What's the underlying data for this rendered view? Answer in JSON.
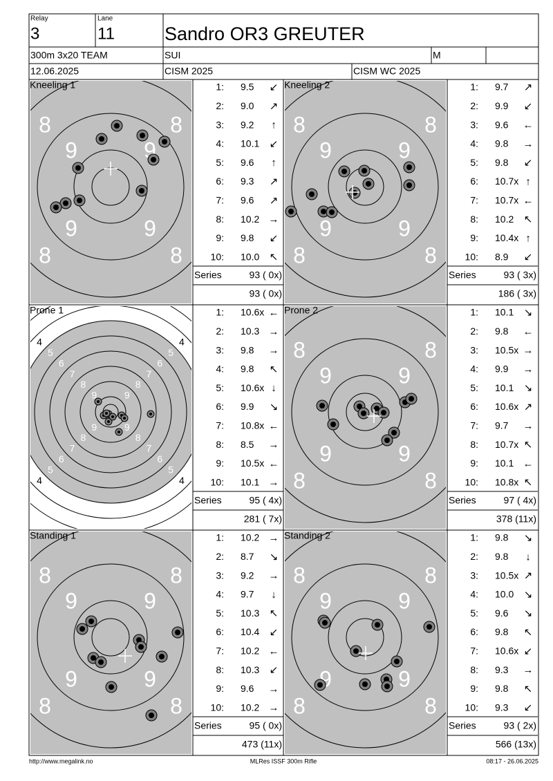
{
  "header": {
    "relay_label": "Relay",
    "relay": "3",
    "lane_label": "Lane",
    "lane": "11",
    "name": "Sandro OR3 GREUTER",
    "event": "300m 3x20 TEAM",
    "nation": "SUI",
    "gender": "M",
    "date": "12.06.2025",
    "competition": "CISM 2025",
    "match": "CISM WC 2025"
  },
  "panels": [
    {
      "title": "Kneeling 1",
      "ring_labels": [
        "8",
        "9"
      ],
      "shots": [
        [
          "1:",
          "9.5",
          "↙"
        ],
        [
          "2:",
          "9.0",
          "↗"
        ],
        [
          "3:",
          "9.2",
          "↑"
        ],
        [
          "4:",
          "10.1",
          "↙"
        ],
        [
          "5:",
          "9.6",
          "↑"
        ],
        [
          "6:",
          "9.3",
          "↗"
        ],
        [
          "7:",
          "9.6",
          "↗"
        ],
        [
          "8:",
          "10.2",
          "→"
        ],
        [
          "9:",
          "9.8",
          "↙"
        ],
        [
          "10:",
          "10.0",
          "↖"
        ]
      ],
      "series_label": "Series",
      "series": "93 ( 0x)",
      "total": "93 ( 0x)"
    },
    {
      "title": "Kneeling 2",
      "ring_labels": [
        "8",
        "9"
      ],
      "shots": [
        [
          "1:",
          "9.7",
          "↗"
        ],
        [
          "2:",
          "9.9",
          "↙"
        ],
        [
          "3:",
          "9.6",
          "←"
        ],
        [
          "4:",
          "9.8",
          "→"
        ],
        [
          "5:",
          "9.8",
          "↙"
        ],
        [
          "6:",
          "10.7x",
          "↑"
        ],
        [
          "7:",
          "10.7x",
          "←"
        ],
        [
          "8:",
          "10.2",
          "↖"
        ],
        [
          "9:",
          "10.4x",
          "↑"
        ],
        [
          "10:",
          "8.9",
          "↙"
        ]
      ],
      "series_label": "Series",
      "series": "93 ( 3x)",
      "total": "186 ( 3x)"
    },
    {
      "title": "Prone 1",
      "ring_labels": [
        "4",
        "5",
        "6",
        "7",
        "8",
        "9"
      ],
      "shots": [
        [
          "1:",
          "10.6x",
          "←"
        ],
        [
          "2:",
          "10.3",
          "→"
        ],
        [
          "3:",
          "9.8",
          "→"
        ],
        [
          "4:",
          "9.8",
          "↖"
        ],
        [
          "5:",
          "10.6x",
          "↓"
        ],
        [
          "6:",
          "9.9",
          "↘"
        ],
        [
          "7:",
          "10.8x",
          "←"
        ],
        [
          "8:",
          "8.5",
          "→"
        ],
        [
          "9:",
          "10.5x",
          "←"
        ],
        [
          "10:",
          "10.1",
          "→"
        ]
      ],
      "series_label": "Series",
      "series": "95 ( 4x)",
      "total": "281 ( 7x)"
    },
    {
      "title": "Prone 2",
      "ring_labels": [
        "8",
        "9"
      ],
      "shots": [
        [
          "1:",
          "10.1",
          "↘"
        ],
        [
          "2:",
          "9.8",
          "←"
        ],
        [
          "3:",
          "10.5x",
          "→"
        ],
        [
          "4:",
          "9.9",
          "→"
        ],
        [
          "5:",
          "10.1",
          "↘"
        ],
        [
          "6:",
          "10.6x",
          "↗"
        ],
        [
          "7:",
          "9.7",
          "→"
        ],
        [
          "8:",
          "10.7x",
          "↖"
        ],
        [
          "9:",
          "10.1",
          "←"
        ],
        [
          "10:",
          "10.8x",
          "↖"
        ]
      ],
      "series_label": "Series",
      "series": "97 ( 4x)",
      "total": "378 (11x)"
    },
    {
      "title": "Standing 1",
      "ring_labels": [
        "8",
        "9"
      ],
      "shots": [
        [
          "1:",
          "10.2",
          "→"
        ],
        [
          "2:",
          "8.7",
          "↘"
        ],
        [
          "3:",
          "9.2",
          "→"
        ],
        [
          "4:",
          "9.7",
          "↓"
        ],
        [
          "5:",
          "10.3",
          "↖"
        ],
        [
          "6:",
          "10.4",
          "↙"
        ],
        [
          "7:",
          "10.2",
          "←"
        ],
        [
          "8:",
          "10.3",
          "↙"
        ],
        [
          "9:",
          "9.6",
          "→"
        ],
        [
          "10:",
          "10.2",
          "→"
        ]
      ],
      "series_label": "Series",
      "series": "95 ( 0x)",
      "total": "473 (11x)"
    },
    {
      "title": "Standing 2",
      "ring_labels": [
        "8",
        "9"
      ],
      "shots": [
        [
          "1:",
          "9.8",
          "↘"
        ],
        [
          "2:",
          "9.8",
          "↓"
        ],
        [
          "3:",
          "10.5x",
          "↗"
        ],
        [
          "4:",
          "10.0",
          "↘"
        ],
        [
          "5:",
          "9.6",
          "↘"
        ],
        [
          "6:",
          "9.8",
          "↖"
        ],
        [
          "7:",
          "10.6x",
          "↙"
        ],
        [
          "8:",
          "9.3",
          "→"
        ],
        [
          "9:",
          "9.8",
          "↖"
        ],
        [
          "10:",
          "9.3",
          "↙"
        ]
      ],
      "series_label": "Series",
      "series": "93 ( 2x)",
      "total": "566 (13x)"
    }
  ],
  "footer": {
    "left": "http://www.megalink.no",
    "center": "MLRes ISSF 300m Rifle",
    "right": "08:17 - 26.06.2025"
  }
}
